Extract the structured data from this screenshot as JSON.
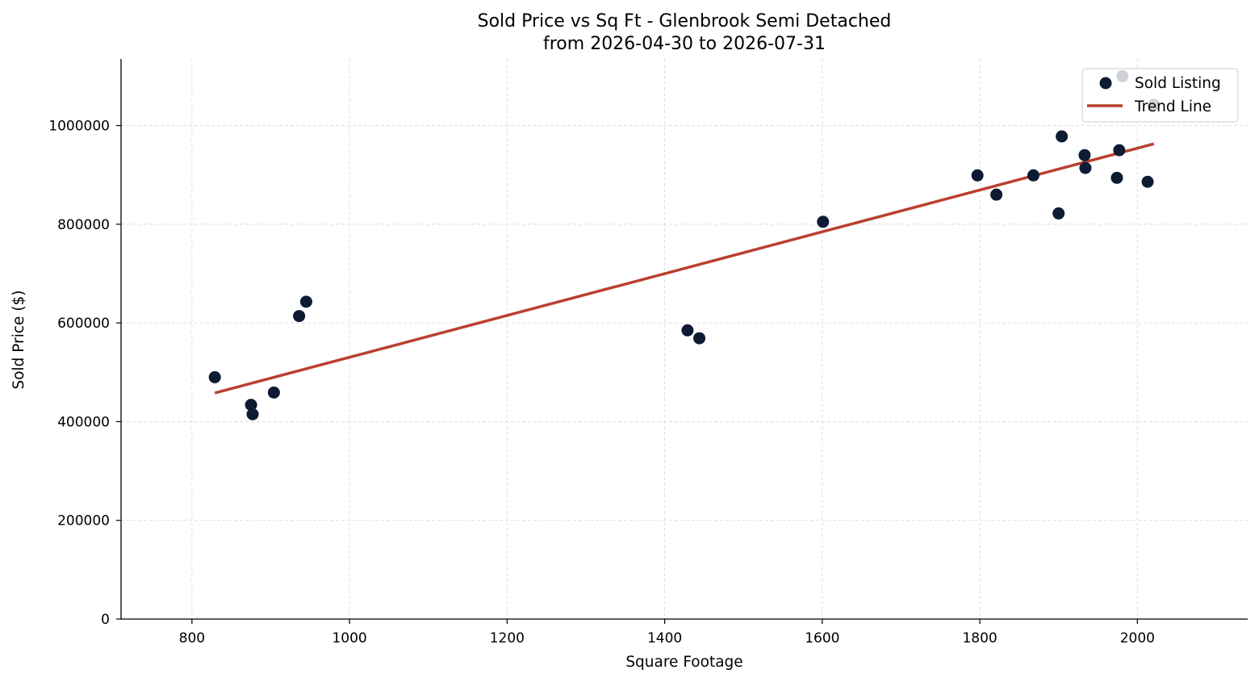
{
  "chart_data": {
    "type": "scatter",
    "title_line1": "Sold Price vs Sq Ft - Glenbrook Semi Detached",
    "title_line2": "from 2026-04-30 to 2026-07-31",
    "xlabel": "Square Footage",
    "ylabel": "Sold Price ($)",
    "xlim": [
      710,
      2140
    ],
    "ylim": [
      0,
      1135000
    ],
    "xticks": [
      800,
      1000,
      1200,
      1400,
      1600,
      1800,
      2000
    ],
    "yticks": [
      0,
      200000,
      400000,
      600000,
      800000,
      1000000
    ],
    "grid": true,
    "legend_position": "top-right",
    "series": [
      {
        "name": "Sold Listing",
        "kind": "scatter",
        "color": "#0d1b33",
        "points": [
          {
            "x": 829,
            "y": 490000
          },
          {
            "x": 875,
            "y": 434000
          },
          {
            "x": 877,
            "y": 415000
          },
          {
            "x": 904,
            "y": 459000
          },
          {
            "x": 936,
            "y": 614000
          },
          {
            "x": 945,
            "y": 643000
          },
          {
            "x": 1429,
            "y": 585000
          },
          {
            "x": 1444,
            "y": 569000
          },
          {
            "x": 1601,
            "y": 805000
          },
          {
            "x": 1797,
            "y": 899000
          },
          {
            "x": 1821,
            "y": 860000
          },
          {
            "x": 1868,
            "y": 899000
          },
          {
            "x": 1900,
            "y": 822000
          },
          {
            "x": 1904,
            "y": 978000
          },
          {
            "x": 1933,
            "y": 940000
          },
          {
            "x": 1934,
            "y": 914000
          },
          {
            "x": 1974,
            "y": 894000
          },
          {
            "x": 1977,
            "y": 950000
          },
          {
            "x": 1981,
            "y": 1100000
          },
          {
            "x": 2013,
            "y": 886000
          },
          {
            "x": 2021,
            "y": 1042000
          }
        ]
      },
      {
        "name": "Trend Line",
        "kind": "line",
        "color": "#b94030",
        "points": [
          {
            "x": 829,
            "y": 458000
          },
          {
            "x": 2021,
            "y": 963000
          }
        ]
      }
    ]
  }
}
